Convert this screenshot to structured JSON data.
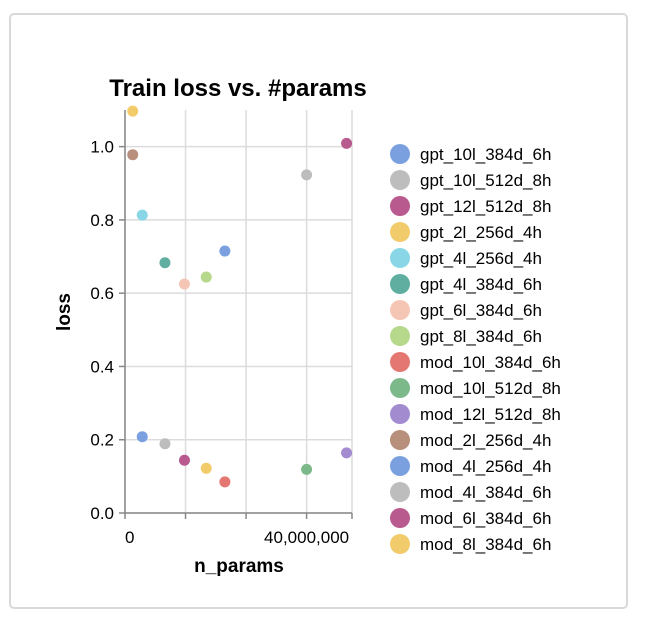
{
  "chart_data": {
    "type": "scatter",
    "title": "Train loss vs. #params",
    "xlabel": "n_params",
    "ylabel": "loss",
    "xlim": [
      0,
      50000000
    ],
    "ylim": [
      0,
      1.1
    ],
    "x_ticks": [
      0,
      40000000
    ],
    "x_tick_labels": [
      "0",
      "40,000,000"
    ],
    "y_ticks": [
      0.0,
      0.2,
      0.4,
      0.6,
      0.8,
      1.0
    ],
    "y_tick_labels": [
      "0.0",
      "0.2",
      "0.4",
      "0.6",
      "0.8",
      "1.0"
    ],
    "x_grid": [
      0,
      13333333,
      26666667,
      40000000,
      50000000
    ],
    "grid": true,
    "legend_position": "right",
    "series": [
      {
        "name": "gpt_10l_384d_6h",
        "color": "#7aa0e0",
        "x": 22000000,
        "y": 0.715
      },
      {
        "name": "gpt_10l_512d_8h",
        "color": "#bdbdbd",
        "x": 40000000,
        "y": 0.923
      },
      {
        "name": "gpt_12l_512d_8h",
        "color": "#b85a8e",
        "x": 48800000,
        "y": 1.009
      },
      {
        "name": "gpt_2l_256d_4h",
        "color": "#f2cb6a",
        "x": 1700000,
        "y": 1.097
      },
      {
        "name": "gpt_4l_256d_4h",
        "color": "#88d6e6",
        "x": 3800000,
        "y": 0.813
      },
      {
        "name": "gpt_4l_384d_6h",
        "color": "#5fae9f",
        "x": 8800000,
        "y": 0.683
      },
      {
        "name": "gpt_6l_384d_6h",
        "color": "#f6c6b5",
        "x": 13100000,
        "y": 0.625
      },
      {
        "name": "gpt_8l_384d_6h",
        "color": "#b5d88a",
        "x": 17900000,
        "y": 0.644
      },
      {
        "name": "mod_10l_384d_6h",
        "color": "#e57772",
        "x": 22000000,
        "y": 0.085
      },
      {
        "name": "mod_10l_512d_8h",
        "color": "#7cb98a",
        "x": 40000000,
        "y": 0.119
      },
      {
        "name": "mod_12l_512d_8h",
        "color": "#a38bd0",
        "x": 48800000,
        "y": 0.164
      },
      {
        "name": "mod_2l_256d_4h",
        "color": "#b88e7c",
        "x": 1700000,
        "y": 0.978
      },
      {
        "name": "mod_4l_256d_4h",
        "color": "#7aa0e0",
        "x": 3800000,
        "y": 0.208
      },
      {
        "name": "mod_4l_384d_6h",
        "color": "#bdbdbd",
        "x": 8800000,
        "y": 0.189
      },
      {
        "name": "mod_6l_384d_6h",
        "color": "#b85a8e",
        "x": 13100000,
        "y": 0.144
      },
      {
        "name": "mod_8l_384d_6h",
        "color": "#f2cb6a",
        "x": 17900000,
        "y": 0.122
      }
    ]
  }
}
